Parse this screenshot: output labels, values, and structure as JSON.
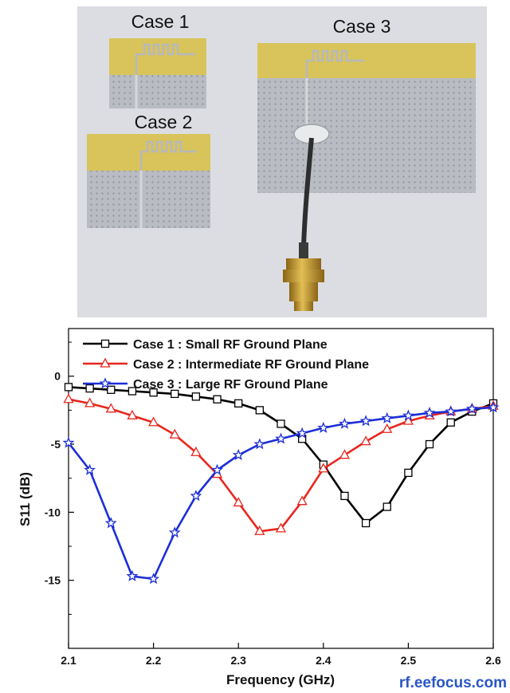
{
  "photo": {
    "labels": [
      "Case 1",
      "Case 2",
      "Case 3"
    ],
    "colors": {
      "background": "#dcdde2",
      "substrate": "#d8c45a",
      "ground_plane": "#b9bcc2",
      "connector_gold": "#c79a2c",
      "cable": "#2e2e2e"
    }
  },
  "chart_data": {
    "type": "line",
    "xlabel": "Frequency (GHz)",
    "ylabel": "S11 (dB)",
    "xlim": [
      2.1,
      2.6
    ],
    "ylim": [
      -20,
      3.5
    ],
    "xticks": [
      "2.1",
      "2.2",
      "2.3",
      "2.4",
      "2.5",
      "2.6"
    ],
    "yticks": [
      "0",
      "-5",
      "-10",
      "-15"
    ],
    "grid": false,
    "legend_position": "top",
    "x": [
      2.1,
      2.125,
      2.15,
      2.175,
      2.2,
      2.225,
      2.25,
      2.275,
      2.3,
      2.325,
      2.35,
      2.375,
      2.4,
      2.425,
      2.45,
      2.475,
      2.5,
      2.525,
      2.55,
      2.575,
      2.6
    ],
    "series": [
      {
        "name": "Case 1 : Small RF Ground Plane",
        "color": "#000000",
        "marker": "square",
        "values": [
          -0.8,
          -0.9,
          -1.0,
          -1.1,
          -1.2,
          -1.3,
          -1.5,
          -1.7,
          -2.0,
          -2.5,
          -3.5,
          -4.6,
          -6.5,
          -8.8,
          -10.8,
          -9.6,
          -7.1,
          -5.0,
          -3.4,
          -2.6,
          -2.0
        ]
      },
      {
        "name": "Case 2 : Intermediate RF Ground Plane",
        "color": "#e8261e",
        "marker": "triangle",
        "values": [
          -1.7,
          -2.0,
          -2.4,
          -2.9,
          -3.4,
          -4.3,
          -5.6,
          -7.2,
          -9.3,
          -11.4,
          -11.2,
          -9.2,
          -6.8,
          -5.8,
          -4.8,
          -3.9,
          -3.3,
          -2.9,
          -2.6,
          -2.4,
          -2.2
        ]
      },
      {
        "name": "Case 3 : Large RF Ground Plane",
        "color": "#1c2ed6",
        "marker": "star",
        "values": [
          -4.9,
          -6.9,
          -10.8,
          -14.7,
          -14.9,
          -11.5,
          -8.8,
          -6.9,
          -5.8,
          -5.0,
          -4.6,
          -4.2,
          -3.8,
          -3.5,
          -3.3,
          -3.1,
          -2.9,
          -2.7,
          -2.6,
          -2.4,
          -2.3
        ]
      }
    ]
  },
  "watermark": "rf.eefocus.com"
}
